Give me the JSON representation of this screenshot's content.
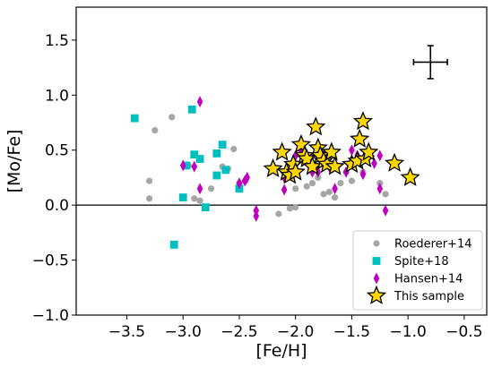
{
  "chart_data": {
    "type": "scatter",
    "xlabel": "[Fe/H]",
    "ylabel": "[Mo/Fe]",
    "xlim": [
      -3.95,
      -0.3
    ],
    "ylim": [
      -1.0,
      1.8
    ],
    "x_ticks": [
      -3.5,
      -3.0,
      -2.5,
      -2.0,
      -1.5,
      -1.0,
      -0.5
    ],
    "x_tick_labels": [
      "−3.5",
      "−3.0",
      "−2.5",
      "−2.0",
      "−1.5",
      "−1.0",
      "−0.5"
    ],
    "y_ticks": [
      -1.0,
      -0.5,
      0.0,
      0.5,
      1.0,
      1.5
    ],
    "y_tick_labels": [
      "−1.0",
      "−0.5",
      "0.0",
      "0.5",
      "1.0",
      "1.5"
    ],
    "reference_line_y": 0.0,
    "legend_position": "bottom-right",
    "error_bar": {
      "x": -0.8,
      "y": 1.3,
      "xerr": 0.15,
      "yerr": 0.15
    },
    "series": [
      {
        "name": "Roederer+14",
        "marker": "circle",
        "color": "#a6a6a6",
        "points": [
          [
            -3.3,
            0.22
          ],
          [
            -3.3,
            0.06
          ],
          [
            -3.25,
            0.68
          ],
          [
            -3.1,
            0.8
          ],
          [
            -2.95,
            0.36
          ],
          [
            -2.9,
            0.06
          ],
          [
            -2.85,
            0.04
          ],
          [
            -2.75,
            0.15
          ],
          [
            -2.65,
            0.35
          ],
          [
            -2.6,
            0.33
          ],
          [
            -2.55,
            0.51
          ],
          [
            -2.5,
            0.2
          ],
          [
            -2.45,
            0.22
          ],
          [
            -2.15,
            -0.08
          ],
          [
            -2.05,
            -0.03
          ],
          [
            -2.0,
            -0.02
          ],
          [
            -2.0,
            0.15
          ],
          [
            -1.9,
            0.17
          ],
          [
            -1.85,
            0.2
          ],
          [
            -1.8,
            0.25
          ],
          [
            -1.75,
            0.1
          ],
          [
            -1.7,
            0.12
          ],
          [
            -1.65,
            0.07
          ],
          [
            -1.6,
            0.2
          ],
          [
            -1.55,
            0.3
          ],
          [
            -1.5,
            0.22
          ],
          [
            -1.4,
            0.3
          ],
          [
            -1.25,
            0.2
          ],
          [
            -1.2,
            0.1
          ]
        ]
      },
      {
        "name": "Spite+18",
        "marker": "square",
        "color": "#00bfbf",
        "points": [
          [
            -3.43,
            0.79
          ],
          [
            -3.08,
            -0.36
          ],
          [
            -3.0,
            0.07
          ],
          [
            -2.97,
            0.36
          ],
          [
            -2.92,
            0.87
          ],
          [
            -2.9,
            0.46
          ],
          [
            -2.85,
            0.42
          ],
          [
            -2.8,
            -0.02
          ],
          [
            -2.7,
            0.27
          ],
          [
            -2.7,
            0.47
          ],
          [
            -2.65,
            0.55
          ],
          [
            -2.62,
            0.32
          ],
          [
            -2.5,
            0.15
          ]
        ]
      },
      {
        "name": "Hansen+14",
        "marker": "diamond",
        "color": "#bf00bf",
        "points": [
          [
            -3.0,
            0.36
          ],
          [
            -2.9,
            0.35
          ],
          [
            -2.85,
            0.15
          ],
          [
            -2.85,
            0.94
          ],
          [
            -2.5,
            0.2
          ],
          [
            -2.45,
            0.22
          ],
          [
            -2.43,
            0.25
          ],
          [
            -2.35,
            -0.1
          ],
          [
            -2.35,
            -0.05
          ],
          [
            -2.1,
            0.14
          ],
          [
            -2.1,
            0.25
          ],
          [
            -2.0,
            0.45
          ],
          [
            -1.95,
            0.5
          ],
          [
            -1.9,
            0.4
          ],
          [
            -1.85,
            0.3
          ],
          [
            -1.8,
            0.3
          ],
          [
            -1.75,
            0.45
          ],
          [
            -1.7,
            0.35
          ],
          [
            -1.65,
            0.15
          ],
          [
            -1.55,
            0.3
          ],
          [
            -1.5,
            0.5
          ],
          [
            -1.45,
            0.45
          ],
          [
            -1.4,
            0.28
          ],
          [
            -1.3,
            0.38
          ],
          [
            -1.25,
            0.45
          ],
          [
            -1.25,
            0.15
          ],
          [
            -1.2,
            -0.05
          ]
        ]
      },
      {
        "name": "This sample",
        "marker": "star",
        "color": "#ffd700",
        "points": [
          [
            -2.2,
            0.33
          ],
          [
            -2.12,
            0.48
          ],
          [
            -2.08,
            0.3
          ],
          [
            -2.05,
            0.27
          ],
          [
            -2.02,
            0.37
          ],
          [
            -2.0,
            0.3
          ],
          [
            -1.95,
            0.55
          ],
          [
            -1.92,
            0.45
          ],
          [
            -1.9,
            0.42
          ],
          [
            -1.85,
            0.35
          ],
          [
            -1.82,
            0.71
          ],
          [
            -1.8,
            0.52
          ],
          [
            -1.78,
            0.45
          ],
          [
            -1.75,
            0.4
          ],
          [
            -1.72,
            0.37
          ],
          [
            -1.68,
            0.48
          ],
          [
            -1.65,
            0.35
          ],
          [
            -1.5,
            0.37
          ],
          [
            -1.45,
            0.4
          ],
          [
            -1.43,
            0.6
          ],
          [
            -1.4,
            0.76
          ],
          [
            -1.38,
            0.42
          ],
          [
            -1.35,
            0.48
          ],
          [
            -1.12,
            0.38
          ],
          [
            -0.98,
            0.25
          ]
        ]
      }
    ]
  }
}
